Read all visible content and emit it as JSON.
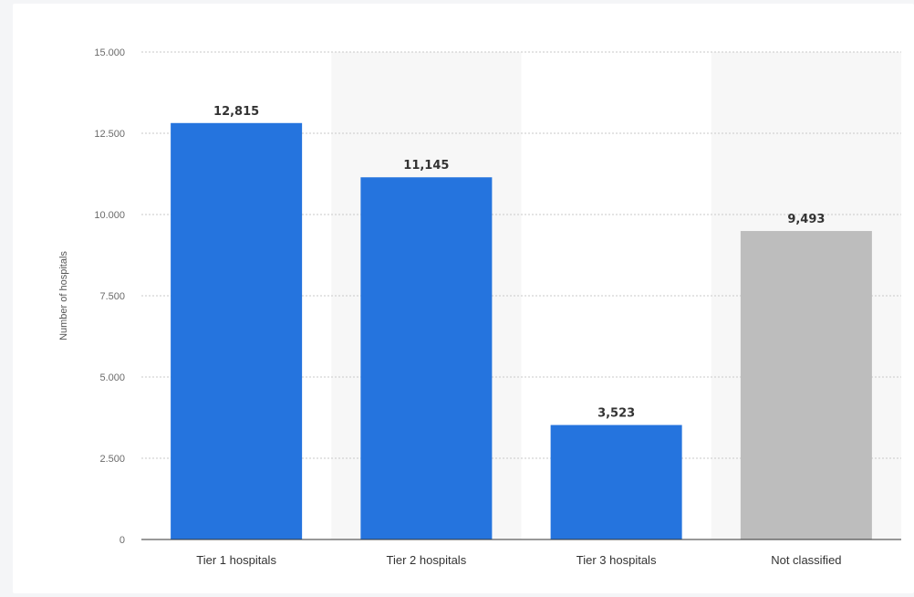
{
  "chart_data": {
    "type": "bar",
    "categories": [
      "Tier 1 hospitals",
      "Tier 2 hospitals",
      "Tier 3 hospitals",
      "Not classified"
    ],
    "values": [
      12815,
      11145,
      3523,
      9493
    ],
    "value_labels": [
      "12,815",
      "11,145",
      "3,523",
      "9,493"
    ],
    "ylabel": "Number of hospitals",
    "ylim": [
      0,
      15000
    ],
    "yticks": [
      0,
      2500,
      5000,
      7500,
      10000,
      12500,
      15000
    ],
    "ytick_labels": [
      "0",
      "2.500",
      "5.000",
      "7.500",
      "10.000",
      "12.500",
      "15.000"
    ],
    "bar_colors": [
      "#2574de",
      "#2574de",
      "#2574de",
      "#bdbdbd"
    ],
    "band_color": "#f7f7f7",
    "grid": true,
    "legend": false
  }
}
